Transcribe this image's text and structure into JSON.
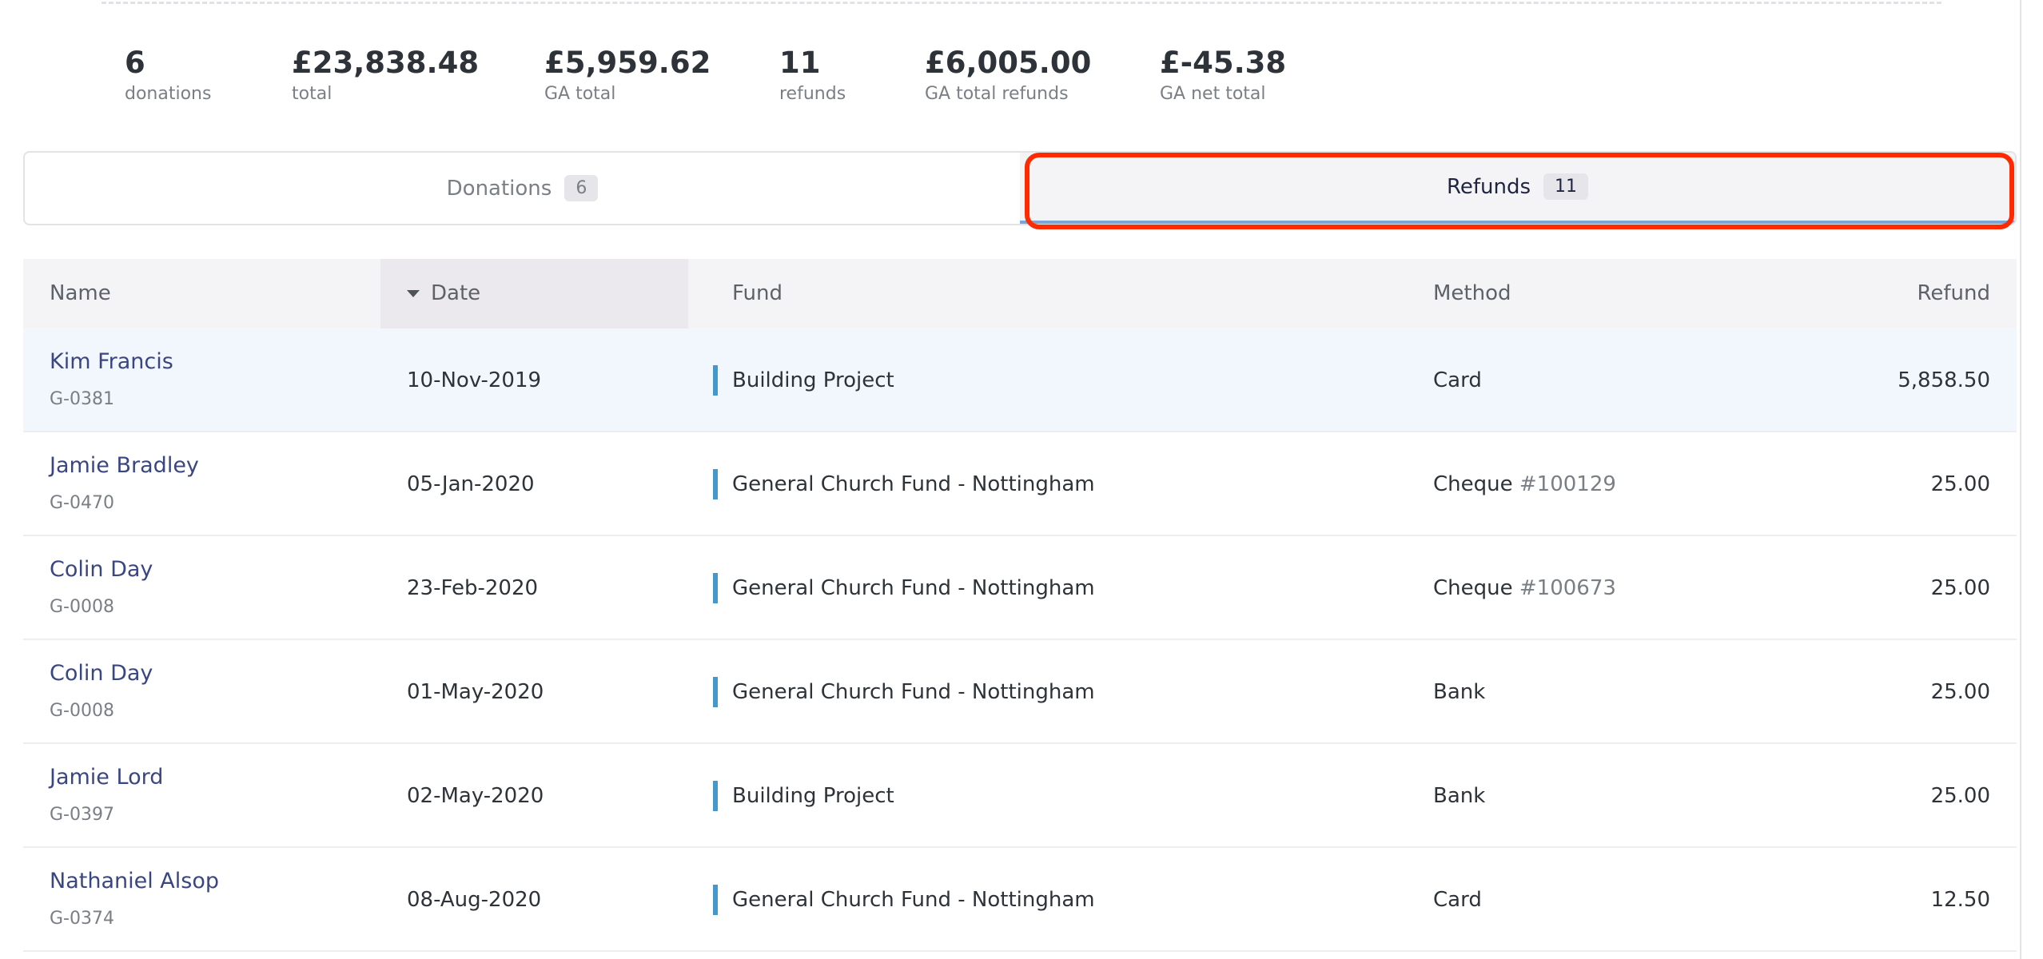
{
  "stats": [
    {
      "value": "6",
      "label": "donations"
    },
    {
      "value": "£23,838.48",
      "label": "total"
    },
    {
      "value": "£5,959.62",
      "label": "GA total"
    },
    {
      "value": "11",
      "label": "refunds"
    },
    {
      "value": "£6,005.00",
      "label": "GA total refunds"
    },
    {
      "value": "£-45.38",
      "label": "GA net total"
    }
  ],
  "tabs": [
    {
      "label": "Donations",
      "count": "6"
    },
    {
      "label": "Refunds",
      "count": "11",
      "active": true
    }
  ],
  "highlight_color": "#ff2a00",
  "table": {
    "headers": {
      "name": "Name",
      "date": "Date",
      "fund": "Fund",
      "method": "Method",
      "refund": "Refund"
    },
    "sort": {
      "column": "date",
      "direction": "descending-icon"
    },
    "rows": [
      {
        "name": "Kim Francis",
        "id": "G-0381",
        "date": "10-Nov-2019",
        "fund": "Building Project",
        "method": "Card",
        "cheque": "",
        "refund": "5,858.50"
      },
      {
        "name": "Jamie Bradley",
        "id": "G-0470",
        "date": "05-Jan-2020",
        "fund": "General Church Fund - Nottingham",
        "method": "Cheque",
        "cheque": "#100129",
        "refund": "25.00"
      },
      {
        "name": "Colin Day",
        "id": "G-0008",
        "date": "23-Feb-2020",
        "fund": "General Church Fund - Nottingham",
        "method": "Cheque",
        "cheque": "#100673",
        "refund": "25.00"
      },
      {
        "name": "Colin Day",
        "id": "G-0008",
        "date": "01-May-2020",
        "fund": "General Church Fund - Nottingham",
        "method": "Bank",
        "cheque": "",
        "refund": "25.00"
      },
      {
        "name": "Jamie Lord",
        "id": "G-0397",
        "date": "02-May-2020",
        "fund": "Building Project",
        "method": "Bank",
        "cheque": "",
        "refund": "25.00"
      },
      {
        "name": "Nathaniel Alsop",
        "id": "G-0374",
        "date": "08-Aug-2020",
        "fund": "General Church Fund - Nottingham",
        "method": "Card",
        "cheque": "",
        "refund": "12.50"
      }
    ]
  }
}
